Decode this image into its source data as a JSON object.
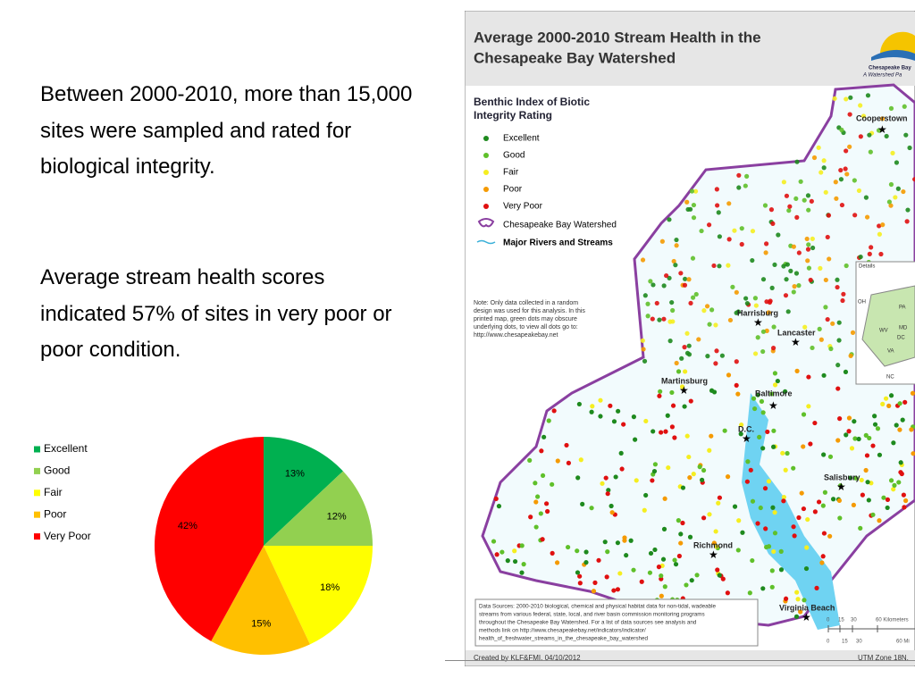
{
  "slide": {
    "paragraphs": [
      "Between 2000-2010, more than 15,000 sites were sampled and rated for biological integrity.",
      "Average stream health scores indicated 57% of sites in very poor or poor condition."
    ]
  },
  "chart_data": {
    "type": "pie",
    "categories": [
      "Excellent",
      "Good",
      "Fair",
      "Poor",
      "Very Poor"
    ],
    "values": [
      13,
      12,
      18,
      15,
      42
    ],
    "value_labels": [
      "13%",
      "12%",
      "18%",
      "15%",
      "42%"
    ],
    "colors": [
      "#00b050",
      "#92d050",
      "#ffff00",
      "#ffc000",
      "#ff0000"
    ],
    "legend": "left"
  },
  "map": {
    "title": [
      "Average 2000-2010 Stream Health in the",
      "Chesapeake Bay Watershed"
    ],
    "logo": [
      "Chesapeake Bay",
      "A Watershed Pa"
    ],
    "legend_title": [
      "Benthic Index of Biotic",
      "Integrity Rating"
    ],
    "legend": [
      "Excellent",
      "Good",
      "Fair",
      "Poor",
      "Very Poor",
      "Chesapeake Bay Watershed",
      "Major Rivers and Streams"
    ],
    "note": [
      "Note: Only data collected in a random",
      "design was used for this analysis.  In this",
      "printed map, green dots may obscure",
      "underlying dots, to view all dots go to:",
      "http://www.chesapeakebay.net"
    ],
    "cities": [
      "Cooperstown",
      "Harrisburg",
      "Lancaster",
      "Martinsburg",
      "Baltimore",
      "D.C.",
      "Salisbury",
      "Richmond",
      "Virginia Beach"
    ],
    "inset": [
      "Details",
      "OH",
      "PA",
      "WV",
      "MD",
      "DC",
      "VA",
      "NC"
    ],
    "sources": [
      "Data Sources: 2000-2010 biological, chemical and physical habitat data for non-tidal, wadeable",
      "streams from various federal, state, local, and river basin commission monitoring programs",
      "throughout the Chesapeake Bay Watershed.  For a list of data sources see analysis and",
      "methods link on http://www.chesapeakebay.net/indicators/indicator/",
      "health_of_freshwater_streams_in_the_chesapeake_bay_watershed"
    ],
    "scale_km": [
      "0",
      "15",
      "30",
      "60 Kilometers"
    ],
    "scale_mi": [
      "0",
      "15",
      "30",
      "60 Mi"
    ],
    "credit": "Created by KLF&FMI, 04/10/2012",
    "projection": "UTM Zone 18N,"
  }
}
